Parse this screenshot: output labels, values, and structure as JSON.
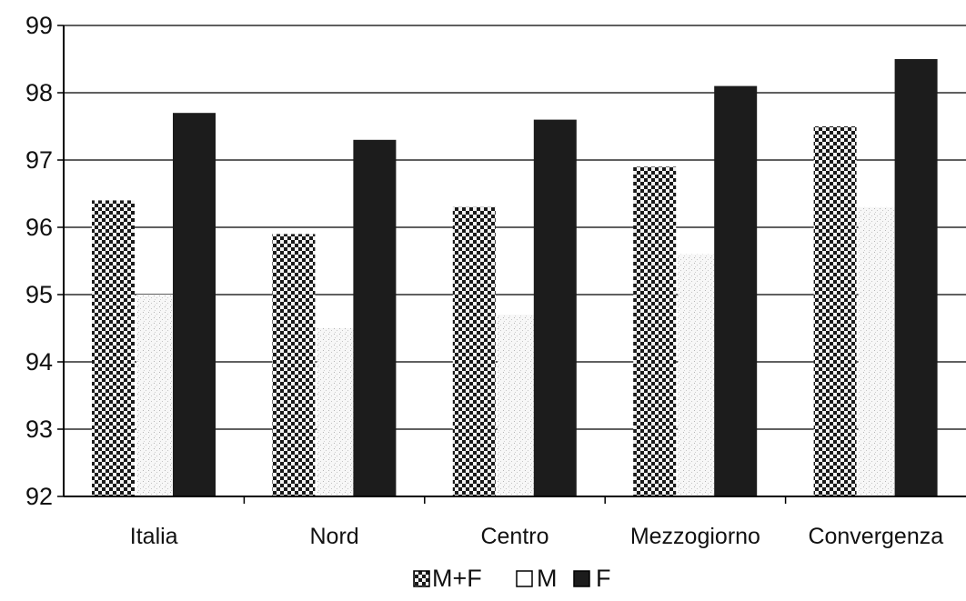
{
  "chart_data": {
    "type": "bar",
    "categories": [
      "Italia",
      "Nord",
      "Centro",
      "Mezzogiorno",
      "Convergenza"
    ],
    "series": [
      {
        "name": "M+F",
        "values": [
          96.4,
          95.9,
          96.3,
          96.9,
          97.5
        ],
        "pattern": "checker"
      },
      {
        "name": "M",
        "values": [
          95.0,
          94.5,
          94.7,
          95.6,
          96.3
        ],
        "pattern": "light-stipple"
      },
      {
        "name": "F",
        "values": [
          97.7,
          97.3,
          97.6,
          98.1,
          98.5
        ],
        "pattern": "dark"
      }
    ],
    "ylim": [
      92,
      99
    ],
    "yticks": [
      "92",
      "93",
      "94",
      "95",
      "96",
      "97",
      "98",
      "99"
    ],
    "grid": true,
    "legend": "bottom",
    "colors": {
      "dark": "#1c1c1c",
      "checker_dark": "#1a1a1a",
      "checker_light": "#f2f2f2",
      "stipple": "#e6e6e6",
      "grid": "#000000"
    }
  }
}
